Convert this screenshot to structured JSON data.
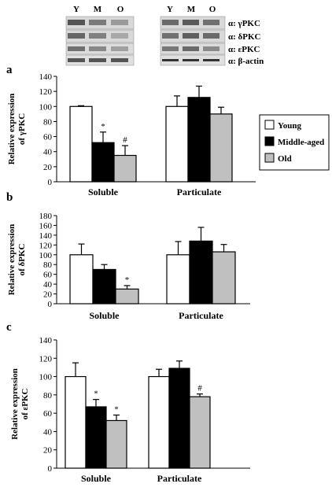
{
  "blot": {
    "lane_labels": [
      "Y",
      "M",
      "O"
    ],
    "row_labels": [
      "α: γPKC",
      "α: δPKC",
      "α: εPKC",
      "α: β-actin"
    ]
  },
  "legend": {
    "entries": [
      {
        "label": "Young",
        "color": "#ffffff"
      },
      {
        "label": "Middle-aged",
        "color": "#000000"
      },
      {
        "label": "Old",
        "color": "#c0c0c0"
      }
    ]
  },
  "chart_data": [
    {
      "type": "bar",
      "panel": "a",
      "ylabel": [
        "Relative expression",
        "of γPKC"
      ],
      "categories": [
        "Soluble",
        "Particulate"
      ],
      "ylim": [
        0,
        140
      ],
      "yticks": [
        0,
        20,
        40,
        60,
        80,
        100,
        120,
        140
      ],
      "series": [
        {
          "name": "Young",
          "color": "#ffffff",
          "values": [
            100,
            100
          ],
          "errors": [
            1,
            14
          ]
        },
        {
          "name": "Middle-aged",
          "color": "#000000",
          "values": [
            52,
            112
          ],
          "errors": [
            14,
            15
          ]
        },
        {
          "name": "Old",
          "color": "#c0c0c0",
          "values": [
            35,
            90
          ],
          "errors": [
            13,
            9
          ]
        }
      ],
      "annotations": [
        {
          "category": 0,
          "series": 1,
          "text": "*"
        },
        {
          "category": 0,
          "series": 2,
          "text": "#"
        }
      ]
    },
    {
      "type": "bar",
      "panel": "b",
      "ylabel": [
        "Relative expression",
        "of δPKC"
      ],
      "categories": [
        "Soluble",
        "Particulate"
      ],
      "ylim": [
        0,
        180
      ],
      "yticks": [
        0,
        20,
        40,
        60,
        80,
        100,
        120,
        140,
        160,
        180
      ],
      "series": [
        {
          "name": "Young",
          "color": "#ffffff",
          "values": [
            100,
            100
          ],
          "errors": [
            22,
            27
          ]
        },
        {
          "name": "Middle-aged",
          "color": "#000000",
          "values": [
            70,
            128
          ],
          "errors": [
            10,
            28
          ]
        },
        {
          "name": "Old",
          "color": "#c0c0c0",
          "values": [
            30,
            106
          ],
          "errors": [
            7,
            15
          ]
        }
      ],
      "annotations": [
        {
          "category": 0,
          "series": 2,
          "text": "*"
        }
      ]
    },
    {
      "type": "bar",
      "panel": "c",
      "ylabel": [
        "Relative expression",
        "of εPKC"
      ],
      "categories": [
        "Soluble",
        "Particulate"
      ],
      "ylim": [
        0,
        140
      ],
      "yticks": [
        0,
        20,
        40,
        60,
        80,
        100,
        120,
        140
      ],
      "series": [
        {
          "name": "Young",
          "color": "#ffffff",
          "values": [
            100,
            100
          ],
          "errors": [
            15,
            8
          ]
        },
        {
          "name": "Middle-aged",
          "color": "#000000",
          "values": [
            67,
            109
          ],
          "errors": [
            8,
            8
          ]
        },
        {
          "name": "Old",
          "color": "#c0c0c0",
          "values": [
            52,
            78
          ],
          "errors": [
            6,
            3
          ]
        }
      ],
      "annotations": [
        {
          "category": 0,
          "series": 1,
          "text": "*"
        },
        {
          "category": 0,
          "series": 2,
          "text": "*"
        },
        {
          "category": 1,
          "series": 2,
          "text": "#"
        }
      ]
    }
  ]
}
